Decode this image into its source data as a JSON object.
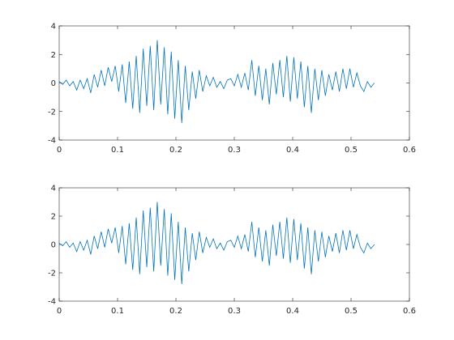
{
  "chart_data": [
    {
      "type": "line",
      "x": [
        0,
        0.006,
        0.012,
        0.018,
        0.024,
        0.03,
        0.036,
        0.042,
        0.048,
        0.054,
        0.06,
        0.066,
        0.072,
        0.078,
        0.084,
        0.09,
        0.096,
        0.102,
        0.108,
        0.114,
        0.12,
        0.126,
        0.132,
        0.138,
        0.144,
        0.15,
        0.156,
        0.162,
        0.168,
        0.174,
        0.18,
        0.186,
        0.192,
        0.198,
        0.204,
        0.21,
        0.216,
        0.222,
        0.228,
        0.234,
        0.24,
        0.246,
        0.252,
        0.258,
        0.264,
        0.27,
        0.276,
        0.282,
        0.288,
        0.294,
        0.3,
        0.306,
        0.312,
        0.318,
        0.324,
        0.33,
        0.336,
        0.342,
        0.348,
        0.354,
        0.36,
        0.366,
        0.372,
        0.378,
        0.384,
        0.39,
        0.396,
        0.402,
        0.408,
        0.414,
        0.42,
        0.426,
        0.432,
        0.438,
        0.444,
        0.45,
        0.456,
        0.462,
        0.468,
        0.474,
        0.48,
        0.486,
        0.492,
        0.498,
        0.504,
        0.51,
        0.516,
        0.522,
        0.528,
        0.534,
        0.54
      ],
      "series": [
        {
          "color": "#0072bd",
          "values": [
            0.1,
            -0.1,
            0.2,
            -0.2,
            0.1,
            -0.5,
            0.2,
            -0.4,
            0.3,
            -0.7,
            0.6,
            -0.3,
            0.9,
            -0.2,
            1.1,
            0.1,
            1.2,
            -0.6,
            1.3,
            -1.4,
            1.5,
            -1.8,
            1.9,
            -2.1,
            2.4,
            -1.6,
            2.6,
            -1.9,
            3.0,
            -1.5,
            2.5,
            -2.2,
            2.2,
            -2.5,
            1.6,
            -2.8,
            1.2,
            -1.9,
            0.8,
            -1.1,
            0.9,
            -0.6,
            0.5,
            -0.2,
            0.4,
            -0.3,
            0.1,
            -0.4,
            0.2,
            0.3,
            -0.2,
            0.6,
            -0.3,
            0.7,
            -0.5,
            1.6,
            -0.9,
            1.2,
            -1.2,
            1.0,
            -1.5,
            1.4,
            -0.8,
            1.6,
            -1.0,
            1.9,
            -1.3,
            1.8,
            -1.1,
            1.5,
            -1.7,
            1.2,
            -2.1,
            1.0,
            -1.2,
            0.9,
            -0.9,
            0.6,
            -0.5,
            0.8,
            -0.6,
            1.0,
            -0.4,
            1.0,
            -0.3,
            0.7,
            -0.2,
            -0.6,
            0.1,
            -0.3,
            0.0
          ]
        }
      ],
      "xlim": [
        0,
        0.6
      ],
      "ylim": [
        -4,
        4
      ],
      "xticks": [
        0,
        0.1,
        0.2,
        0.3,
        0.4,
        0.5,
        0.6
      ],
      "yticks": [
        -4,
        -2,
        0,
        2,
        4
      ]
    },
    {
      "type": "line",
      "x": [
        0,
        0.006,
        0.012,
        0.018,
        0.024,
        0.03,
        0.036,
        0.042,
        0.048,
        0.054,
        0.06,
        0.066,
        0.072,
        0.078,
        0.084,
        0.09,
        0.096,
        0.102,
        0.108,
        0.114,
        0.12,
        0.126,
        0.132,
        0.138,
        0.144,
        0.15,
        0.156,
        0.162,
        0.168,
        0.174,
        0.18,
        0.186,
        0.192,
        0.198,
        0.204,
        0.21,
        0.216,
        0.222,
        0.228,
        0.234,
        0.24,
        0.246,
        0.252,
        0.258,
        0.264,
        0.27,
        0.276,
        0.282,
        0.288,
        0.294,
        0.3,
        0.306,
        0.312,
        0.318,
        0.324,
        0.33,
        0.336,
        0.342,
        0.348,
        0.354,
        0.36,
        0.366,
        0.372,
        0.378,
        0.384,
        0.39,
        0.396,
        0.402,
        0.408,
        0.414,
        0.42,
        0.426,
        0.432,
        0.438,
        0.444,
        0.45,
        0.456,
        0.462,
        0.468,
        0.474,
        0.48,
        0.486,
        0.492,
        0.498,
        0.504,
        0.51,
        0.516,
        0.522,
        0.528,
        0.534,
        0.54
      ],
      "series": [
        {
          "color": "#0072bd",
          "values": [
            0.1,
            -0.1,
            0.2,
            -0.2,
            0.1,
            -0.5,
            0.2,
            -0.4,
            0.3,
            -0.7,
            0.6,
            -0.3,
            0.9,
            -0.2,
            1.1,
            0.1,
            1.2,
            -0.6,
            1.3,
            -1.4,
            1.5,
            -1.8,
            1.9,
            -2.1,
            2.4,
            -1.6,
            2.6,
            -1.9,
            3.0,
            -1.5,
            2.5,
            -2.2,
            2.2,
            -2.5,
            1.6,
            -2.8,
            1.2,
            -1.9,
            0.8,
            -1.1,
            0.9,
            -0.6,
            0.5,
            -0.2,
            0.4,
            -0.3,
            0.1,
            -0.4,
            0.2,
            0.3,
            -0.2,
            0.6,
            -0.3,
            0.7,
            -0.5,
            1.6,
            -0.9,
            1.2,
            -1.2,
            1.0,
            -1.5,
            1.4,
            -0.8,
            1.6,
            -1.0,
            1.9,
            -1.3,
            1.8,
            -1.1,
            1.5,
            -1.7,
            1.2,
            -2.1,
            1.0,
            -1.2,
            0.9,
            -0.9,
            0.6,
            -0.5,
            0.8,
            -0.6,
            1.0,
            -0.4,
            1.0,
            -0.3,
            0.7,
            -0.2,
            -0.6,
            0.1,
            -0.3,
            0.0
          ]
        }
      ],
      "xlim": [
        0,
        0.6
      ],
      "ylim": [
        -4,
        4
      ],
      "xticks": [
        0,
        0.1,
        0.2,
        0.3,
        0.4,
        0.5,
        0.6
      ],
      "yticks": [
        -4,
        -2,
        0,
        2,
        4
      ]
    }
  ]
}
